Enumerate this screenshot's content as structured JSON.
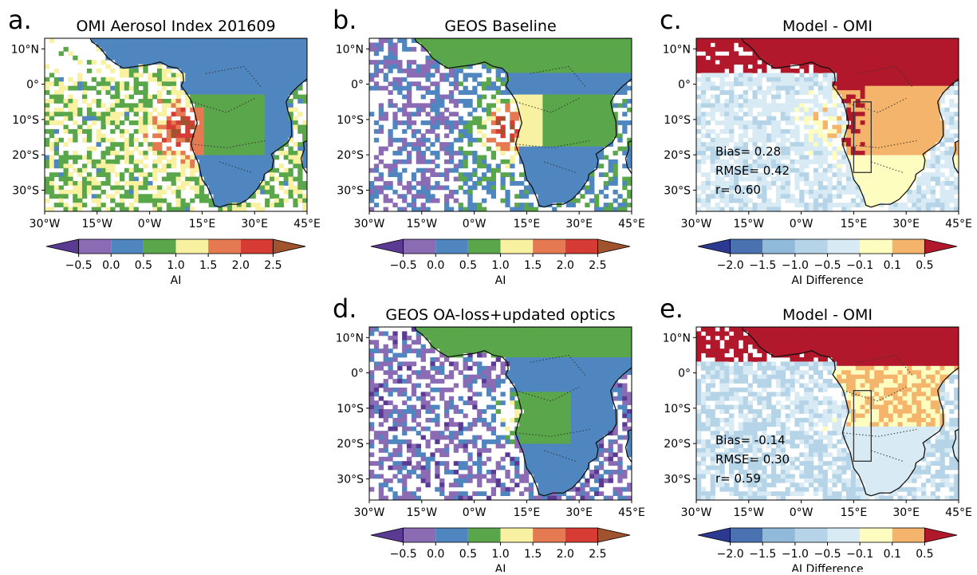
{
  "panels": [
    {
      "letter": "a.",
      "title": "OMI Aerosol Index 201609",
      "xlim": [
        -30,
        45
      ],
      "ylim": [
        -36,
        13
      ],
      "xticks": [
        {
          "value": -30,
          "label": "30°W"
        },
        {
          "value": -15,
          "label": "15°W"
        },
        {
          "value": 0,
          "label": "0°W"
        },
        {
          "value": 15,
          "label": "15°E"
        },
        {
          "value": 30,
          "label": "30°E"
        },
        {
          "value": 45,
          "label": "45°E"
        }
      ],
      "yticks": [
        {
          "value": 10,
          "label": "10°N"
        },
        {
          "value": 0,
          "label": "0°"
        },
        {
          "value": -10,
          "label": "10°S"
        },
        {
          "value": -20,
          "label": "20°S"
        },
        {
          "value": -30,
          "label": "30°S"
        }
      ],
      "colorbar": {
        "label": "AI",
        "colors": [
          "#5b3a94",
          "#8c6bb5",
          "#4f86c0",
          "#5aa64a",
          "#f7f1a1",
          "#e57a52",
          "#d63b34",
          "#a0532d"
        ],
        "ticks": [
          {
            "value": -0.5,
            "label": "−0.5"
          },
          {
            "value": 0,
            "label": "0.0"
          },
          0.5,
          {
            "value": 1,
            "label": "1.0"
          },
          1.5,
          {
            "value": 2,
            "label": "2.0"
          },
          2.5
        ]
      },
      "stats": []
    },
    {
      "letter": "b.",
      "title": "GEOS Baseline",
      "xlim": [
        -30,
        45
      ],
      "ylim": [
        -36,
        13
      ],
      "xticks": [
        {
          "value": -30,
          "label": "30°W"
        },
        {
          "value": -15,
          "label": "15°W"
        },
        {
          "value": 0,
          "label": "0°W"
        },
        {
          "value": 15,
          "label": "15°E"
        },
        {
          "value": 30,
          "label": "30°E"
        },
        {
          "value": 45,
          "label": "45°E"
        }
      ],
      "yticks": [
        {
          "value": 10,
          "label": "10°N"
        },
        {
          "value": 0,
          "label": "0°"
        },
        {
          "value": -10,
          "label": "10°S"
        },
        {
          "value": -20,
          "label": "20°S"
        },
        {
          "value": -30,
          "label": "30°S"
        }
      ],
      "colorbar": {
        "label": "AI",
        "colors": [
          "#5b3a94",
          "#8c6bb5",
          "#4f86c0",
          "#5aa64a",
          "#f7f1a1",
          "#e57a52",
          "#d63b34",
          "#a0532d"
        ],
        "ticks": [
          {
            "value": -0.5,
            "label": "−0.5"
          },
          {
            "value": 0,
            "label": "0.0"
          },
          0.5,
          {
            "value": 1,
            "label": "1.0"
          },
          1.5,
          {
            "value": 2,
            "label": "2.0"
          },
          2.5
        ]
      },
      "stats": []
    },
    {
      "letter": "c.",
      "title": "Model - OMI",
      "xlim": [
        -30,
        45
      ],
      "ylim": [
        -36,
        13
      ],
      "xticks": [
        {
          "value": -30,
          "label": "30°W"
        },
        {
          "value": -15,
          "label": "15°W"
        },
        {
          "value": 0,
          "label": "0°W"
        },
        {
          "value": 15,
          "label": "15°E"
        },
        {
          "value": 30,
          "label": "30°E"
        },
        {
          "value": 45,
          "label": "45°E"
        }
      ],
      "yticks": [
        {
          "value": 10,
          "label": "10°N"
        },
        {
          "value": 0,
          "label": "0°"
        },
        {
          "value": -10,
          "label": "10°S"
        },
        {
          "value": -20,
          "label": "20°S"
        },
        {
          "value": -30,
          "label": "30°S"
        }
      ],
      "colorbar": {
        "label": "AI Difference",
        "colors": [
          "#2b3990",
          "#4a72b0",
          "#91b9d9",
          "#b5d4e7",
          "#d8eaf3",
          "#fdfdc0",
          "#f4b46c",
          "#b2182b"
        ],
        "ticks": [
          {
            "value": -2,
            "label": "−2.0"
          },
          {
            "value": -1.5,
            "label": "−1.5"
          },
          {
            "value": -1,
            "label": "−1.0"
          },
          {
            "value": -0.5,
            "label": "−0.5"
          },
          {
            "value": -0.1,
            "label": "−0.1"
          },
          0.1,
          0.5
        ]
      },
      "stats": [
        "Bias= 0.28",
        "RMSE= 0.42",
        "r= 0.60"
      ]
    },
    {
      "letter": "d.",
      "title": "GEOS OA-loss+updated optics",
      "xlim": [
        -30,
        45
      ],
      "ylim": [
        -36,
        13
      ],
      "xticks": [
        {
          "value": -30,
          "label": "30°W"
        },
        {
          "value": -15,
          "label": "15°W"
        },
        {
          "value": 0,
          "label": "0°W"
        },
        {
          "value": 15,
          "label": "15°E"
        },
        {
          "value": 30,
          "label": "30°E"
        },
        {
          "value": 45,
          "label": "45°E"
        }
      ],
      "yticks": [
        {
          "value": 10,
          "label": "10°N"
        },
        {
          "value": 0,
          "label": "0°"
        },
        {
          "value": -10,
          "label": "10°S"
        },
        {
          "value": -20,
          "label": "20°S"
        },
        {
          "value": -30,
          "label": "30°S"
        }
      ],
      "colorbar": {
        "label": "AI",
        "colors": [
          "#5b3a94",
          "#8c6bb5",
          "#4f86c0",
          "#5aa64a",
          "#f7f1a1",
          "#e57a52",
          "#d63b34",
          "#a0532d"
        ],
        "ticks": [
          {
            "value": -0.5,
            "label": "−0.5"
          },
          {
            "value": 0,
            "label": "0.0"
          },
          0.5,
          {
            "value": 1,
            "label": "1.0"
          },
          1.5,
          {
            "value": 2,
            "label": "2.0"
          },
          2.5
        ]
      },
      "stats": []
    },
    {
      "letter": "e.",
      "title": "Model - OMI",
      "xlim": [
        -30,
        45
      ],
      "ylim": [
        -36,
        13
      ],
      "xticks": [
        {
          "value": -30,
          "label": "30°W"
        },
        {
          "value": -15,
          "label": "15°W"
        },
        {
          "value": 0,
          "label": "0°W"
        },
        {
          "value": 15,
          "label": "15°E"
        },
        {
          "value": 30,
          "label": "30°E"
        },
        {
          "value": 45,
          "label": "45°E"
        }
      ],
      "yticks": [
        {
          "value": 10,
          "label": "10°N"
        },
        {
          "value": 0,
          "label": "0°"
        },
        {
          "value": -10,
          "label": "10°S"
        },
        {
          "value": -20,
          "label": "20°S"
        },
        {
          "value": -30,
          "label": "30°S"
        }
      ],
      "colorbar": {
        "label": "AI Difference",
        "colors": [
          "#2b3990",
          "#4a72b0",
          "#91b9d9",
          "#b5d4e7",
          "#d8eaf3",
          "#fdfdc0",
          "#f4b46c",
          "#b2182b"
        ],
        "ticks": [
          {
            "value": -2,
            "label": "−2.0"
          },
          {
            "value": -1.5,
            "label": "−1.5"
          },
          {
            "value": -1,
            "label": "−1.0"
          },
          {
            "value": -0.5,
            "label": "−0.5"
          },
          {
            "value": -0.1,
            "label": "−0.1"
          },
          0.1,
          0.5
        ]
      },
      "stats": [
        "Bias= -0.14",
        "RMSE= 0.30",
        "r= 0.59"
      ]
    }
  ]
}
